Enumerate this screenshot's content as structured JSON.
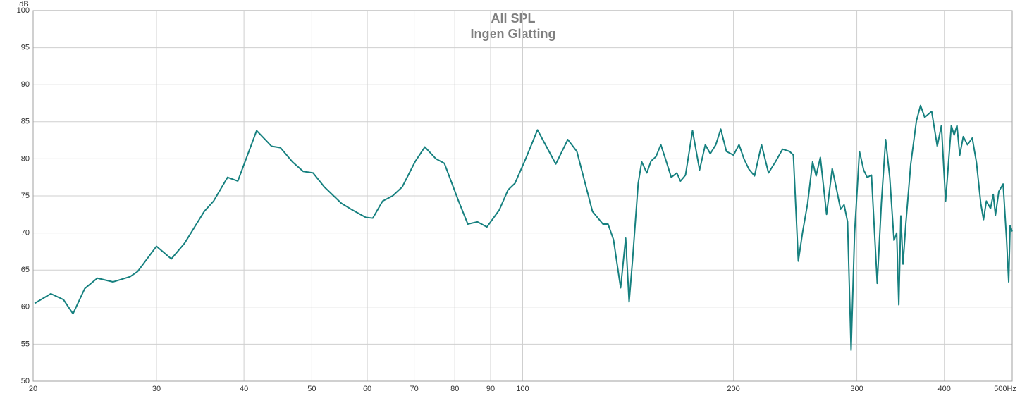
{
  "chart_data": {
    "type": "line",
    "title": "All SPL",
    "subtitle": "Ingen Glatting",
    "y_label": "dB",
    "xscale": "log",
    "grid": true,
    "xlim": [
      20,
      500
    ],
    "ylim": [
      50,
      100
    ],
    "xticks": [
      20,
      30,
      40,
      50,
      60,
      70,
      80,
      90,
      100,
      200,
      300,
      400,
      {
        "value": 500,
        "label": "500Hz"
      }
    ],
    "yticks": [
      50,
      55,
      60,
      65,
      70,
      75,
      80,
      85,
      90,
      95,
      100
    ],
    "x": [
      20.1,
      21.2,
      22.1,
      22.8,
      23.7,
      24.7,
      26.0,
      27.5,
      28.2,
      30.0,
      31.5,
      32.9,
      35.1,
      36.2,
      37.9,
      39.2,
      41.7,
      43.8,
      45.1,
      46.9,
      48.6,
      50.2,
      52.1,
      55.1,
      56.9,
      59.7,
      61.1,
      63.1,
      65.2,
      67.3,
      70.2,
      72.5,
      75.2,
      77.3,
      81.0,
      83.5,
      86.2,
      88.9,
      92.6,
      95.3,
      97.5,
      101,
      105,
      111.5,
      116,
      119.5,
      125.8,
      130.2,
      132.4,
      134.8,
      138,
      140.3,
      141.9,
      143.5,
      146.2,
      147.9,
      150.4,
      152.5,
      155,
      157.5,
      160.4,
      163,
      166,
      168,
      170.8,
      174.8,
      178.9,
      182.3,
      185.3,
      188.7,
      191.8,
      195.4,
      200,
      203.7,
      207,
      210.4,
      214.3,
      219.3,
      224.4,
      229.6,
      235,
      240.5,
      243.5,
      247.5,
      250.9,
      255.2,
      259.4,
      262.4,
      266.1,
      271.6,
      276.7,
      281.2,
      284.4,
      287.7,
      291,
      294.4,
      297.8,
      302.6,
      306.8,
      310.4,
      314.8,
      320.8,
      325.2,
      329.8,
      334.3,
      339,
      342,
      344.4,
      346.7,
      349.2,
      352.4,
      358.2,
      364.9,
      369.9,
      375,
      383.7,
      390.8,
      396.2,
      401.7,
      409.3,
      413.1,
      417,
      420.8,
      425.7,
      431.6,
      438.5,
      444.6,
      450.9,
      455,
      459.3,
      465.6,
      469.8,
      473.2,
      478.5,
      485.3,
      490.9,
      494.3,
      496.6,
      500
    ],
    "series": [
      {
        "name": "All SPL",
        "color": "#16807f",
        "values": [
          60.5,
          61.8,
          61.0,
          59.1,
          62.5,
          63.9,
          63.4,
          64.1,
          64.8,
          68.2,
          66.5,
          68.6,
          72.9,
          74.3,
          77.5,
          77.0,
          83.8,
          81.7,
          81.5,
          79.6,
          78.3,
          78.1,
          76.2,
          74.0,
          73.2,
          72.1,
          72.0,
          74.3,
          75.0,
          76.2,
          79.6,
          81.6,
          80.0,
          79.4,
          74.3,
          71.2,
          71.5,
          70.8,
          73.1,
          75.8,
          76.7,
          80.0,
          83.9,
          79.3,
          82.6,
          81.0,
          72.9,
          71.2,
          71.2,
          69.1,
          62.6,
          69.3,
          60.7,
          66.3,
          76.7,
          79.6,
          78.1,
          79.7,
          80.3,
          81.9,
          79.6,
          77.5,
          78.1,
          77.0,
          77.8,
          83.8,
          78.5,
          81.9,
          80.7,
          81.9,
          84.0,
          81.0,
          80.5,
          81.9,
          80.0,
          78.6,
          77.7,
          81.9,
          78.1,
          79.6,
          81.3,
          81.0,
          80.5,
          66.2,
          70.0,
          74.0,
          79.6,
          77.7,
          80.2,
          72.5,
          78.7,
          75.5,
          73.2,
          73.8,
          71.5,
          54.2,
          70.0,
          81.0,
          78.5,
          77.5,
          77.8,
          63.2,
          74.0,
          82.6,
          77.5,
          69.0,
          70.0,
          60.3,
          72.3,
          65.8,
          71.2,
          79.3,
          85.1,
          87.2,
          85.6,
          86.4,
          81.7,
          84.5,
          74.3,
          84.5,
          83.2,
          84.5,
          80.5,
          83.0,
          81.9,
          82.8,
          79.5,
          74.0,
          71.8,
          74.3,
          73.3,
          75.2,
          72.4,
          75.6,
          76.6,
          69.0,
          63.4,
          71.0,
          70.2
        ]
      }
    ]
  }
}
